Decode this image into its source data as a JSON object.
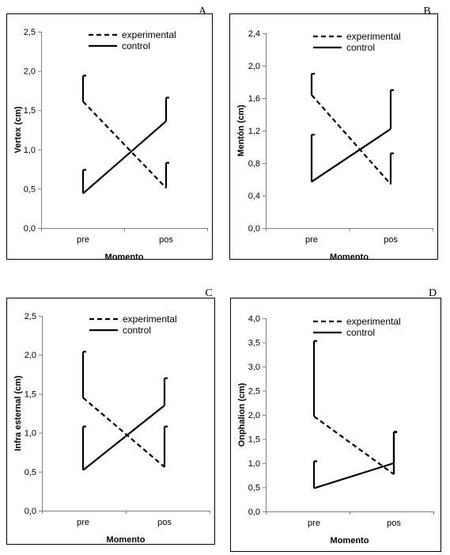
{
  "chart_data": [
    {
      "type": "line",
      "panel_label": "A",
      "categories": [
        "pre",
        "pos"
      ],
      "xlabel": "Momento",
      "ylabel": "Vertex (cm)",
      "ylim": [
        0,
        2.5
      ],
      "yticks": [
        "0,0",
        "0,5",
        "1,0",
        "1,5",
        "2,0",
        "2,5"
      ],
      "legend_position": "top-center",
      "series": [
        {
          "name": "experimental",
          "style": "dashed",
          "values": [
            1.61,
            0.51
          ],
          "error_upper": [
            0.33,
            0.32
          ]
        },
        {
          "name": "control",
          "style": "solid",
          "values": [
            0.44,
            1.36
          ],
          "error_upper": [
            0.3,
            0.3
          ]
        }
      ]
    },
    {
      "type": "line",
      "panel_label": "B",
      "categories": [
        "pre",
        "pos"
      ],
      "xlabel": "Momento",
      "ylabel": "Mentón (cm)",
      "ylim": [
        0,
        2.4
      ],
      "yticks": [
        "0,0",
        "0,4",
        "0,8",
        "1,2",
        "1,6",
        "2,0",
        "2,4"
      ],
      "legend_position": "top-center",
      "series": [
        {
          "name": "experimental",
          "style": "dashed",
          "values": [
            1.64,
            0.54
          ],
          "error_upper": [
            0.26,
            0.38
          ]
        },
        {
          "name": "control",
          "style": "solid",
          "values": [
            0.57,
            1.22
          ],
          "error_upper": [
            0.58,
            0.48
          ]
        }
      ]
    },
    {
      "type": "line",
      "panel_label": "C",
      "categories": [
        "pre",
        "pos"
      ],
      "xlabel": "Momento",
      "ylabel": "Infra esternal (cm)",
      "ylim": [
        0,
        2.5
      ],
      "yticks": [
        "0,0",
        "0,5",
        "1,0",
        "1,5",
        "2,0",
        "2,5"
      ],
      "legend_position": "top-center",
      "series": [
        {
          "name": "experimental",
          "style": "dashed",
          "values": [
            1.45,
            0.56
          ],
          "error_upper": [
            0.59,
            0.52
          ]
        },
        {
          "name": "control",
          "style": "solid",
          "values": [
            0.52,
            1.35
          ],
          "error_upper": [
            0.56,
            0.35
          ]
        }
      ]
    },
    {
      "type": "line",
      "panel_label": "D",
      "categories": [
        "pre",
        "pos"
      ],
      "xlabel": "Momento",
      "ylabel": "Onphalion (cm)",
      "ylim": [
        0,
        4.0
      ],
      "yticks": [
        "0,0",
        "0,5",
        "1,0",
        "1,5",
        "2,0",
        "2,5",
        "3,0",
        "3,5",
        "4,0"
      ],
      "legend_position": "top-center",
      "series": [
        {
          "name": "experimental",
          "style": "dashed",
          "values": [
            1.97,
            0.77
          ],
          "error_upper": [
            1.56,
            0.88
          ]
        },
        {
          "name": "control",
          "style": "solid",
          "values": [
            0.48,
            1.0
          ],
          "error_upper": [
            0.56,
            0.64
          ]
        }
      ]
    }
  ]
}
